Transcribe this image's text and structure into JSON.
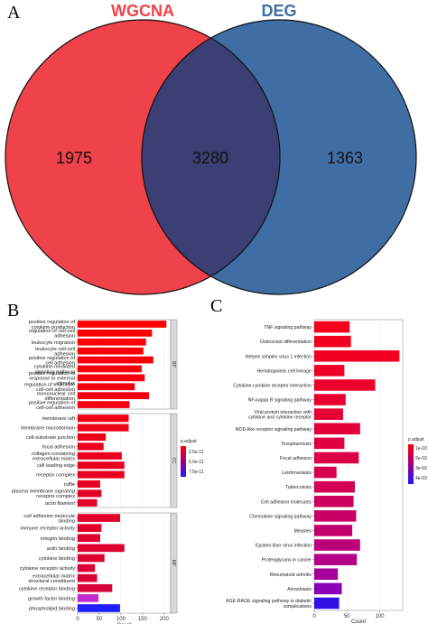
{
  "panels": {
    "a": "A",
    "b": "B",
    "c": "C"
  },
  "venn": {
    "left": {
      "label": "WGCNA",
      "only": "1975",
      "color": "#f0424a"
    },
    "right": {
      "label": "DEG",
      "only": "1363",
      "color": "#3f6ea5"
    },
    "overlap": {
      "value": "3280",
      "color": "#3b3f73"
    }
  },
  "chart_data": [
    {
      "type": "bar",
      "orientation": "horizontal",
      "xlabel": "Count",
      "xticks": [
        0,
        50,
        100,
        150,
        200
      ],
      "xlim": [
        0,
        215
      ],
      "legend": {
        "title": "p.adjust",
        "ticks": [
          "2.5e-11",
          "5.0e-11",
          "7.5e-11"
        ],
        "position": "right"
      },
      "facets": [
        {
          "name": "BP",
          "categories": [
            "positive regulation of cytokine production",
            "regulation of cell-cell adhesion",
            "leukocyte migration",
            "leukocyte cell-cell adhesion",
            "positive regulation of cell adhesion",
            "cytokine-mediated signaling pathway",
            "positive regulation of response to external stimulus",
            "regulation of leukocyte cell-cell adhesion",
            "mononuclear cell differentiation",
            "positive regulation of cell-cell adhesion"
          ],
          "values": [
            205,
            172,
            158,
            152,
            175,
            148,
            155,
            132,
            165,
            120
          ]
        },
        {
          "name": "CC",
          "categories": [
            "membrane raft",
            "membrane microdomain",
            "cell-substrate junction",
            "focal adhesion",
            "collagen-containing extracellular matrix",
            "cell leading edge",
            "receptor complex",
            "ruffle",
            "plasma membrane signaling receptor complex",
            "actin filament"
          ],
          "values": [
            118,
            118,
            65,
            60,
            102,
            108,
            108,
            52,
            55,
            45
          ]
        },
        {
          "name": "MF",
          "categories": [
            "cell adhesion molecule binding",
            "immune receptor activity",
            "integrin binding",
            "actin binding",
            "cytokine binding",
            "cytokine receptor activity",
            "extracellular matrix structural constituent",
            "cytokine receptor binding",
            "growth factor binding",
            "phospholipid binding"
          ],
          "values": [
            98,
            55,
            52,
            108,
            62,
            40,
            45,
            80,
            48,
            98
          ]
        }
      ]
    },
    {
      "type": "bar",
      "orientation": "horizontal",
      "xlabel": "Count",
      "xticks": [
        0,
        50,
        100
      ],
      "xlim": [
        0,
        135
      ],
      "legend": {
        "title": "p.adjust",
        "ticks": [
          "1e-03",
          "2e-03",
          "3e-03",
          "4e-03"
        ],
        "position": "right"
      },
      "categories": [
        "TNF signaling pathway",
        "Osteoclast differentiation",
        "Herpes simplex virus 1 infection",
        "Hematopoietic cell lineage",
        "Cytokine-cytokine receptor interaction",
        "NF-kappa B signaling pathway",
        "Viral protein interaction with cytokine and cytokine receptor",
        "NOD-like receptor signaling pathway",
        "Toxoplasmosis",
        "Focal adhesion",
        "Leishmaniasis",
        "Tuberculosis",
        "Cell adhesion molecules",
        "Chemokine signaling pathway",
        "Measles",
        "Epstein-Barr virus infection",
        "Proteoglycans in cancer",
        "Rheumatoid arthritis",
        "Amoebiasis",
        "AGE-RAGE signaling pathway in diabetic complications"
      ],
      "values": [
        54,
        56,
        130,
        46,
        93,
        48,
        44,
        70,
        46,
        68,
        34,
        62,
        60,
        64,
        58,
        70,
        65,
        36,
        42,
        38
      ],
      "bar_colors": [
        "#f4001c",
        "#f3001e",
        "#f10022",
        "#ef0026",
        "#ec002b",
        "#e90031",
        "#e60036",
        "#e3003b",
        "#e00041",
        "#dc0047",
        "#d8004e",
        "#d30056",
        "#ce005e",
        "#c90066",
        "#c3006f",
        "#bc007a",
        "#b30087",
        "#a40099",
        "#8a00b8",
        "#2f11e6"
      ],
      "highlight_color": "#ff2b2b"
    }
  ]
}
